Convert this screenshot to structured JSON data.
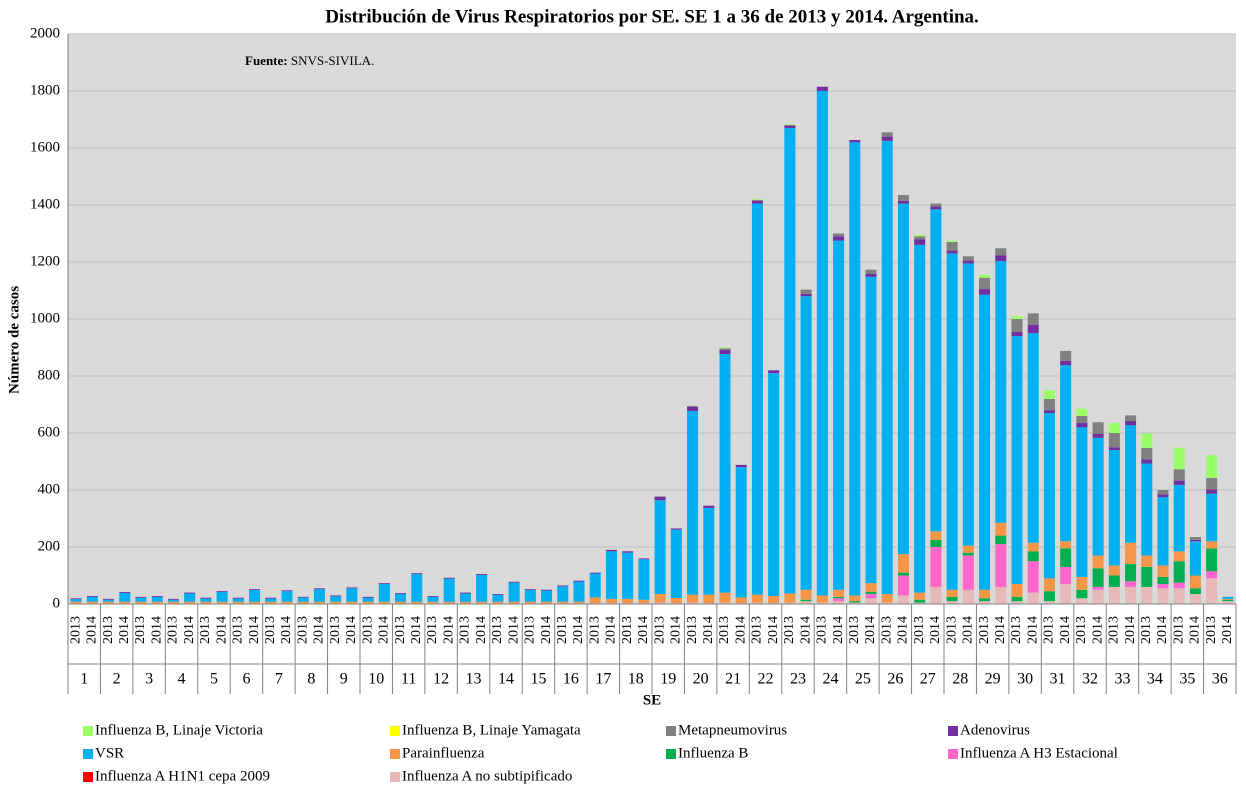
{
  "chart_data": {
    "type": "stacked_bar",
    "title": "Distribución de Virus Respiratorios por SE. SE 1 a 36 de 2013 y 2014. Argentina.",
    "annotation": {
      "label": "Fuente:",
      "text": "SNVS-SIVILA."
    },
    "ylabel": "Número de casos",
    "xlabel": "SE",
    "categories": [
      "2013",
      "2014",
      "2013",
      "2014",
      "2013",
      "2014",
      "2013",
      "2014",
      "2013",
      "2014",
      "2013",
      "2014",
      "2013",
      "2014",
      "2013",
      "2014",
      "2013",
      "2014",
      "2013",
      "2014",
      "2013",
      "2014",
      "2013",
      "2014",
      "2013",
      "2014",
      "2013",
      "2014",
      "2013",
      "2014",
      "2013",
      "2014",
      "2013",
      "2014",
      "2013",
      "2014",
      "2013",
      "2014",
      "2013",
      "2014",
      "2013",
      "2014",
      "2013",
      "2014",
      "2013",
      "2014",
      "2013",
      "2014",
      "2013",
      "2014",
      "2013",
      "2014",
      "2013",
      "2014",
      "2013",
      "2014",
      "2013",
      "2014",
      "2013",
      "2014",
      "2013",
      "2014",
      "2013",
      "2014",
      "2013",
      "2014",
      "2013",
      "2014",
      "2013",
      "2014",
      "2013",
      "2014"
    ],
    "groups": [
      "1",
      "2",
      "3",
      "4",
      "5",
      "6",
      "7",
      "8",
      "9",
      "10",
      "11",
      "12",
      "13",
      "14",
      "15",
      "16",
      "17",
      "18",
      "19",
      "20",
      "21",
      "22",
      "23",
      "24",
      "25",
      "26",
      "27",
      "28",
      "29",
      "30",
      "31",
      "32",
      "33",
      "34",
      "35",
      "36"
    ],
    "ylim": [
      0,
      2000
    ],
    "yticks": [
      0,
      200,
      400,
      600,
      800,
      1000,
      1200,
      1400,
      1600,
      1800,
      2000
    ],
    "grid": true,
    "series": [
      {
        "name": "Influenza B, Linaje Victoria",
        "color": "#99ff66",
        "values": [
          0,
          0,
          0,
          0,
          0,
          0,
          0,
          0,
          0,
          0,
          0,
          0,
          0,
          0,
          0,
          0,
          0,
          0,
          0,
          0,
          0,
          0,
          0,
          0,
          0,
          0,
          0,
          0,
          0,
          0,
          0,
          0,
          0,
          0,
          0,
          0,
          0,
          0,
          0,
          0,
          3,
          0,
          2,
          0,
          3,
          0,
          0,
          0,
          0,
          0,
          0,
          0,
          5,
          0,
          5,
          0,
          10,
          0,
          10,
          0,
          30,
          0,
          25,
          0,
          35,
          0,
          50,
          0,
          75,
          0,
          80,
          0
        ]
      },
      {
        "name": "Influenza B, Linaje Yamagata",
        "color": "#ffff00",
        "values": [
          0,
          0,
          0,
          0,
          0,
          0,
          0,
          0,
          0,
          0,
          0,
          0,
          0,
          0,
          0,
          0,
          0,
          0,
          0,
          0,
          0,
          0,
          0,
          0,
          0,
          0,
          0,
          0,
          0,
          0,
          0,
          0,
          0,
          0,
          0,
          0,
          0,
          0,
          0,
          0,
          0,
          0,
          0,
          0,
          0,
          0,
          0,
          0,
          0,
          0,
          0,
          0,
          0,
          0,
          0,
          0,
          0,
          0,
          0,
          0,
          0,
          0,
          0,
          0,
          0,
          0,
          0,
          0,
          0,
          0,
          0,
          0
        ]
      },
      {
        "name": "Metapneumovirus",
        "color": "#808080",
        "values": [
          0,
          0,
          0,
          0,
          0,
          0,
          0,
          0,
          0,
          0,
          0,
          0,
          0,
          0,
          0,
          0,
          0,
          0,
          0,
          0,
          0,
          0,
          0,
          0,
          0,
          0,
          0,
          0,
          0,
          0,
          0,
          0,
          0,
          0,
          0,
          0,
          2,
          0,
          3,
          0,
          5,
          0,
          3,
          0,
          0,
          15,
          0,
          10,
          0,
          15,
          15,
          20,
          10,
          10,
          30,
          15,
          40,
          25,
          45,
          40,
          40,
          35,
          25,
          40,
          50,
          20,
          40,
          15,
          40,
          10,
          40,
          0
        ]
      },
      {
        "name": "Adenovirus",
        "color": "#7030a0",
        "values": [
          3,
          3,
          3,
          3,
          3,
          3,
          3,
          3,
          3,
          3,
          3,
          3,
          3,
          3,
          3,
          3,
          3,
          3,
          3,
          3,
          3,
          3,
          3,
          3,
          3,
          3,
          3,
          3,
          3,
          3,
          3,
          3,
          3,
          5,
          5,
          3,
          12,
          4,
          15,
          8,
          15,
          8,
          10,
          10,
          10,
          8,
          15,
          15,
          8,
          10,
          15,
          10,
          20,
          10,
          10,
          10,
          20,
          20,
          15,
          30,
          10,
          15,
          15,
          15,
          10,
          15,
          15,
          10,
          15,
          5,
          15,
          0
        ]
      },
      {
        "name": "VSR",
        "color": "#00b0f0",
        "values": [
          9,
          17,
          7,
          31,
          14,
          17,
          7,
          29,
          11,
          34,
          11,
          41,
          11,
          37,
          14,
          44,
          19,
          47,
          14,
          62,
          27,
          97,
          17,
          81,
          29,
          94,
          24,
          67,
          41,
          39,
          54,
          71,
          84,
          167,
          162,
          142,
          329,
          240,
          644,
          304,
          837,
          457,
          1372,
          782,
          1633,
          1030,
          1770,
          1225,
          1590,
          1075,
          1590,
          1230,
          1220,
          1130,
          1180,
          990,
          1035,
          918,
          870,
          735,
          580,
          618,
          525,
          413,
          405,
          412,
          323,
          240,
          233,
          120,
          167,
          7
        ]
      },
      {
        "name": "Parainfluenza",
        "color": "#f79646",
        "values": [
          6,
          6,
          6,
          6,
          6,
          6,
          6,
          6,
          6,
          6,
          6,
          6,
          6,
          6,
          6,
          6,
          6,
          6,
          6,
          6,
          6,
          6,
          6,
          6,
          6,
          6,
          6,
          6,
          6,
          6,
          6,
          6,
          20,
          15,
          15,
          12,
          30,
          18,
          28,
          30,
          35,
          20,
          28,
          25,
          32,
          35,
          25,
          25,
          20,
          30,
          30,
          65,
          25,
          30,
          25,
          25,
          30,
          45,
          45,
          30,
          45,
          25,
          45,
          45,
          35,
          75,
          40,
          40,
          35,
          45,
          25,
          3
        ]
      },
      {
        "name": "Influenza B",
        "color": "#00b050",
        "values": [
          0,
          0,
          0,
          0,
          0,
          0,
          0,
          0,
          0,
          0,
          0,
          0,
          0,
          0,
          0,
          0,
          0,
          0,
          0,
          0,
          0,
          0,
          0,
          0,
          0,
          0,
          0,
          0,
          0,
          0,
          0,
          0,
          0,
          0,
          0,
          0,
          0,
          0,
          0,
          0,
          0,
          0,
          0,
          0,
          0,
          5,
          0,
          5,
          5,
          8,
          0,
          10,
          10,
          25,
          15,
          10,
          10,
          30,
          15,
          35,
          35,
          65,
          30,
          65,
          40,
          60,
          70,
          25,
          75,
          20,
          80,
          5
        ]
      },
      {
        "name": "Influenza A H3 Estacional",
        "color": "#ff66cc",
        "values": [
          0,
          0,
          0,
          0,
          0,
          0,
          0,
          0,
          0,
          0,
          0,
          0,
          0,
          0,
          0,
          0,
          0,
          0,
          0,
          0,
          0,
          0,
          0,
          0,
          0,
          0,
          0,
          0,
          0,
          0,
          0,
          0,
          0,
          0,
          0,
          0,
          0,
          0,
          0,
          0,
          0,
          0,
          0,
          0,
          0,
          0,
          0,
          10,
          0,
          15,
          0,
          70,
          0,
          140,
          0,
          120,
          0,
          150,
          0,
          110,
          0,
          60,
          0,
          10,
          0,
          20,
          0,
          15,
          20,
          0,
          25,
          0
        ]
      },
      {
        "name": "Influenza A H1N1 cepa 2009",
        "color": "#ff0000",
        "values": [
          0,
          0,
          0,
          0,
          0,
          0,
          0,
          0,
          0,
          0,
          0,
          0,
          0,
          0,
          0,
          0,
          0,
          0,
          0,
          0,
          0,
          0,
          0,
          0,
          0,
          0,
          0,
          0,
          0,
          0,
          0,
          0,
          0,
          0,
          0,
          0,
          0,
          0,
          0,
          0,
          0,
          0,
          0,
          0,
          0,
          0,
          0,
          0,
          0,
          0,
          0,
          0,
          0,
          0,
          0,
          0,
          0,
          0,
          0,
          0,
          0,
          0,
          0,
          0,
          0,
          0,
          0,
          0,
          0,
          0,
          0,
          0
        ]
      },
      {
        "name": "Influenza A no subtipificado",
        "color": "#e6b9b8",
        "values": [
          2,
          2,
          2,
          2,
          2,
          2,
          2,
          2,
          2,
          2,
          2,
          2,
          2,
          2,
          2,
          2,
          2,
          2,
          2,
          2,
          2,
          2,
          2,
          2,
          2,
          2,
          2,
          2,
          2,
          2,
          2,
          2,
          3,
          3,
          3,
          3,
          5,
          3,
          5,
          3,
          5,
          3,
          5,
          3,
          5,
          10,
          5,
          10,
          5,
          20,
          5,
          30,
          5,
          60,
          10,
          50,
          10,
          60,
          10,
          40,
          10,
          70,
          20,
          50,
          60,
          60,
          60,
          55,
          55,
          35,
          90,
          10
        ]
      }
    ]
  }
}
